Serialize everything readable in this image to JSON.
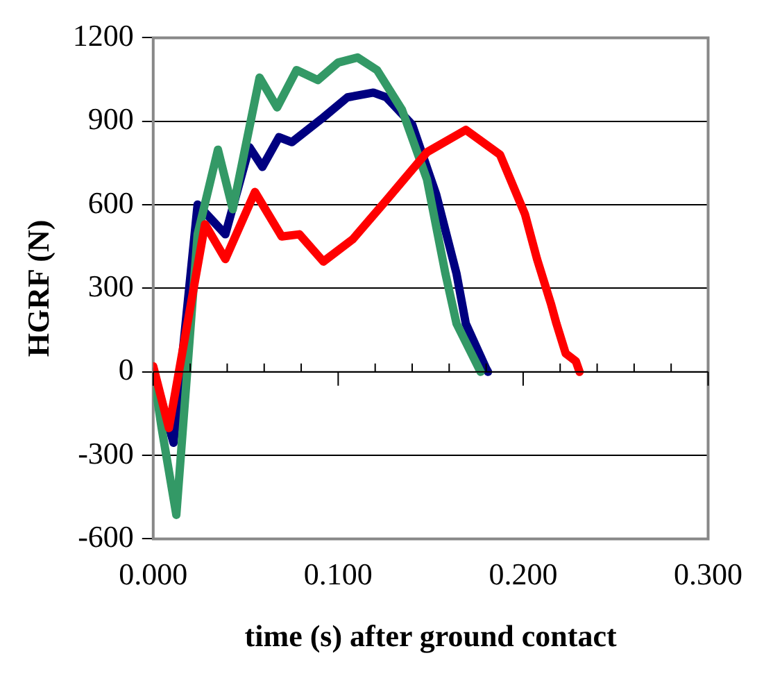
{
  "chart_data": {
    "type": "line",
    "xlabel": "time (s) after ground contact",
    "ylabel": "HGRF (N)",
    "xlim": [
      0,
      0.3
    ],
    "xticks": [
      {
        "value": 0,
        "label": "0.000"
      },
      {
        "value": 0.1,
        "label": "0.100"
      },
      {
        "value": 0.2,
        "label": "0.200"
      },
      {
        "value": 0.3,
        "label": "0.300"
      }
    ],
    "ylim": [
      -600,
      1200
    ],
    "yticks": [
      -600,
      -300,
      0,
      300,
      600,
      900,
      1200
    ],
    "grid": "y",
    "legend": false,
    "marker": "none",
    "line_style": "solid",
    "series": [
      {
        "color": "#000080",
        "x": [
          0,
          0.011,
          0.024,
          0.039,
          0.052,
          0.059,
          0.068,
          0.075,
          0.092,
          0.105,
          0.119,
          0.126,
          0.14,
          0.153,
          0.164,
          0.169,
          0.18,
          0.181
        ],
        "values": [
          0,
          -255,
          601,
          494,
          807,
          736,
          843,
          825,
          914,
          986,
          1003,
          986,
          888,
          637,
          352,
          173,
          12,
          0
        ]
      },
      {
        "color": "#339966",
        "x": [
          0,
          0.0045,
          0.0125,
          0.024,
          0.035,
          0.043,
          0.0575,
          0.067,
          0.0775,
          0.089,
          0.1,
          0.1105,
          0.121,
          0.1345,
          0.148,
          0.158,
          0.164,
          0.177
        ],
        "values": [
          0,
          -200,
          -514,
          494,
          798,
          584,
          1057,
          950,
          1084,
          1048,
          1111,
          1129,
          1084,
          941,
          691,
          352,
          173,
          0
        ]
      },
      {
        "color": "#ff0000",
        "x": [
          0,
          0.0085,
          0.028,
          0.039,
          0.055,
          0.0695,
          0.079,
          0.092,
          0.108,
          0.1265,
          0.148,
          0.169,
          0.1875,
          0.201,
          0.2075,
          0.215,
          0.218,
          0.223,
          0.2285,
          0.2305
        ],
        "values": [
          20,
          -202,
          530,
          405,
          646,
          486,
          494,
          396,
          477,
          620,
          789,
          869,
          780,
          566,
          405,
          245,
          173,
          66,
          38,
          0
        ]
      }
    ]
  }
}
